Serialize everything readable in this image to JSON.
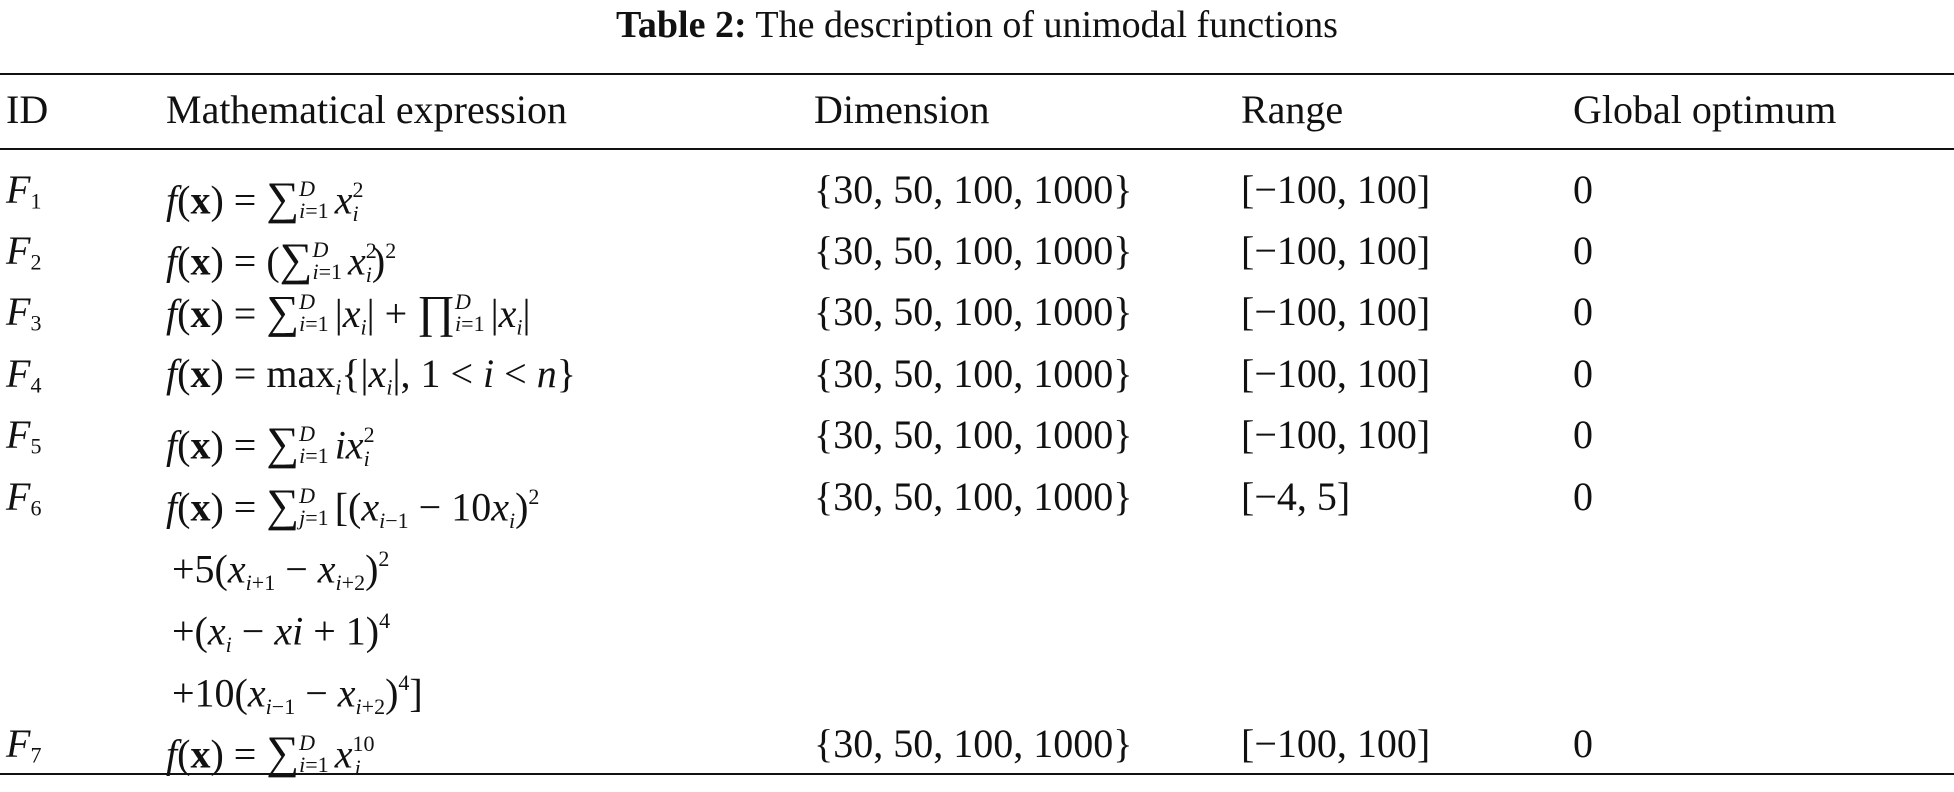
{
  "caption": {
    "label": "Table 2:",
    "text": " The description of unimodal functions"
  },
  "table": {
    "headers": [
      "ID",
      "Mathematical expression",
      "Dimension",
      "Range",
      "Global optimum"
    ],
    "rows": [
      {
        "id_letter": "F",
        "id_sub": "1",
        "dimension": "{30, 50, 100, 1000}",
        "range": "[−100, 100]",
        "optimum": "0"
      },
      {
        "id_letter": "F",
        "id_sub": "2",
        "dimension": "{30, 50, 100, 1000}",
        "range": "[−100, 100]",
        "optimum": "0"
      },
      {
        "id_letter": "F",
        "id_sub": "3",
        "dimension": "{30, 50, 100, 1000}",
        "range": "[−100, 100]",
        "optimum": "0"
      },
      {
        "id_letter": "F",
        "id_sub": "4",
        "dimension": "{30, 50, 100, 1000}",
        "range": "[−100, 100]",
        "optimum": "0"
      },
      {
        "id_letter": "F",
        "id_sub": "5",
        "dimension": "{30, 50, 100, 1000}",
        "range": "[−100, 100]",
        "optimum": "0"
      },
      {
        "id_letter": "F",
        "id_sub": "6",
        "dimension": "{30, 50, 100, 1000}",
        "range": "[−4, 5]",
        "optimum": "0"
      },
      {
        "id_letter": "F",
        "id_sub": "7",
        "dimension": "{30, 50, 100, 1000}",
        "range": "[−100, 100]",
        "optimum": "0"
      }
    ]
  }
}
